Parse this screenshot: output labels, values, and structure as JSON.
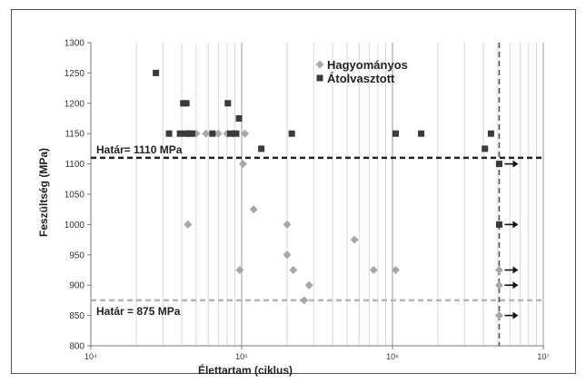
{
  "chart_data": {
    "type": "scatter",
    "xlabel": "Élettartam (ciklus)",
    "ylabel": "Feszültség (MPa)",
    "xscale": "log",
    "xlim": [
      10000,
      10000000
    ],
    "ylim": [
      800,
      1300
    ],
    "xticks": [
      10000,
      100000,
      1000000,
      10000000
    ],
    "xtick_labels": [
      "10⁴",
      "10⁵",
      "10⁶",
      "10⁷"
    ],
    "yticks": [
      800,
      850,
      900,
      950,
      1000,
      1050,
      1100,
      1150,
      1200,
      1250,
      1300
    ],
    "grid": "vertical log minor lines",
    "legend": "top-center",
    "series": [
      {
        "name": "Hagyományos",
        "marker": "diamond",
        "color": "#a8a8a8",
        "points": [
          {
            "x": 44000,
            "y": 1150
          },
          {
            "x": 50000,
            "y": 1150
          },
          {
            "x": 58000,
            "y": 1150
          },
          {
            "x": 70000,
            "y": 1150
          },
          {
            "x": 80000,
            "y": 1150
          },
          {
            "x": 88000,
            "y": 1150
          },
          {
            "x": 105000,
            "y": 1150
          },
          {
            "x": 102000,
            "y": 1100
          },
          {
            "x": 120000,
            "y": 1025
          },
          {
            "x": 44000,
            "y": 1000
          },
          {
            "x": 200000,
            "y": 1000
          },
          {
            "x": 200000,
            "y": 950
          },
          {
            "x": 220000,
            "y": 925
          },
          {
            "x": 97000,
            "y": 925
          },
          {
            "x": 260000,
            "y": 875
          },
          {
            "x": 280000,
            "y": 900
          },
          {
            "x": 560000,
            "y": 975
          },
          {
            "x": 750000,
            "y": 925
          },
          {
            "x": 1050000,
            "y": 925
          },
          {
            "x": 5100000,
            "y": 925
          },
          {
            "x": 5100000,
            "y": 900
          },
          {
            "x": 5100000,
            "y": 850
          }
        ]
      },
      {
        "name": "Átolvasztott",
        "marker": "square",
        "color": "#3a3a3a",
        "points": [
          {
            "x": 27000,
            "y": 1250
          },
          {
            "x": 33000,
            "y": 1150
          },
          {
            "x": 39000,
            "y": 1150
          },
          {
            "x": 41000,
            "y": 1200
          },
          {
            "x": 43000,
            "y": 1200
          },
          {
            "x": 42000,
            "y": 1150
          },
          {
            "x": 45000,
            "y": 1150
          },
          {
            "x": 47000,
            "y": 1150
          },
          {
            "x": 64000,
            "y": 1150
          },
          {
            "x": 81000,
            "y": 1200
          },
          {
            "x": 84000,
            "y": 1150
          },
          {
            "x": 92000,
            "y": 1150
          },
          {
            "x": 96000,
            "y": 1175
          },
          {
            "x": 135000,
            "y": 1125
          },
          {
            "x": 215000,
            "y": 1150
          },
          {
            "x": 1050000,
            "y": 1150
          },
          {
            "x": 1550000,
            "y": 1150
          },
          {
            "x": 4100000,
            "y": 1125
          },
          {
            "x": 4500000,
            "y": 1150
          },
          {
            "x": 5100000,
            "y": 1100
          },
          {
            "x": 5100000,
            "y": 1000
          }
        ]
      }
    ],
    "runouts": [
      {
        "x": 5100000,
        "y": 1100
      },
      {
        "x": 5100000,
        "y": 1000
      },
      {
        "x": 5100000,
        "y": 925
      },
      {
        "x": 5100000,
        "y": 900
      },
      {
        "x": 5100000,
        "y": 850
      }
    ],
    "reference_lines": [
      {
        "axis": "y",
        "value": 1110,
        "label": "Határ= 1110 MPa",
        "style": "dashed",
        "color": "#222222"
      },
      {
        "axis": "y",
        "value": 875,
        "label": "Határ = 875 MPa",
        "style": "dashed",
        "color": "#b4b4b4"
      },
      {
        "axis": "x",
        "value": 5100000,
        "label": "",
        "style": "dashed",
        "color": "#555555"
      }
    ]
  }
}
